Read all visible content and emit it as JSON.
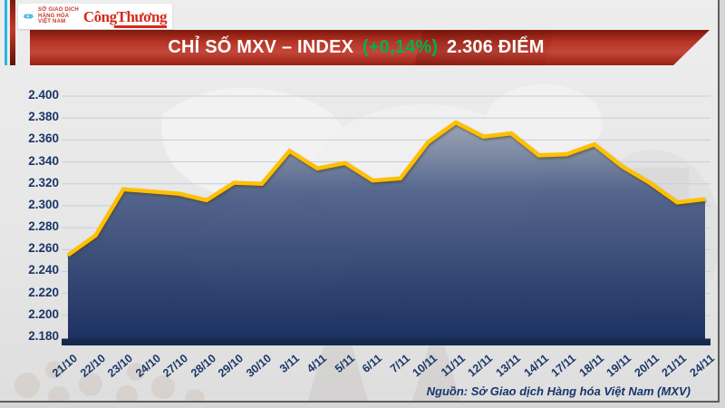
{
  "header": {
    "mxv_logo": {
      "icon": "mxv-chevrons-icon",
      "line1": "SỞ GIAO DỊCH",
      "line2": "HÀNG HÓA",
      "line3": "VIỆT NAM"
    },
    "congthuong_logo": "CôngThương",
    "banner": {
      "title_main": "CHỈ SỐ MXV – INDEX",
      "title_change": "(+0,14%)",
      "title_value": "2.306 ĐIỂM"
    }
  },
  "colors": {
    "banner_red": "#b23122",
    "change_green": "#00b050",
    "line_gold": "#ffc000",
    "axis_navy": "#16294e",
    "label_navy": "#1a3668",
    "stripe_cyan": "#2ab4e4",
    "grid_gray": "#c7cdda"
  },
  "chart_data": {
    "type": "area",
    "title": "CHỈ SỐ MXV – INDEX (+0,14%) 2.306 ĐIỂM",
    "categories": [
      "21/10",
      "22/10",
      "23/10",
      "24/10",
      "27/10",
      "28/10",
      "29/10",
      "30/10",
      "3/11",
      "4/11",
      "5/11",
      "6/11",
      "7/11",
      "10/11",
      "11/11",
      "12/11",
      "13/11",
      "14/11",
      "17/11",
      "18/11",
      "19/11",
      "20/11",
      "21/11",
      "24/11"
    ],
    "values": [
      2255,
      2273,
      2315,
      2313,
      2311,
      2305,
      2321,
      2320,
      2350,
      2334,
      2339,
      2323,
      2325,
      2358,
      2376,
      2363,
      2366,
      2346,
      2347,
      2356,
      2336,
      2321,
      2303,
      2306
    ],
    "ylim": [
      2180,
      2400
    ],
    "y_ticks": [
      2400,
      2380,
      2360,
      2340,
      2320,
      2300,
      2280,
      2260,
      2240,
      2220,
      2200,
      2180
    ],
    "y_tick_labels": [
      "2.400",
      "2.380",
      "2.360",
      "2.340",
      "2.320",
      "2.300",
      "2.280",
      "2.260",
      "2.240",
      "2.220",
      "2.200",
      "2.180"
    ],
    "xlabel": "",
    "ylabel": "",
    "grid": true,
    "legend": "none",
    "line_color": "#ffc000",
    "fill_gradient_top": "#9aa3b4",
    "fill_gradient_mid": "#4f6189",
    "fill_gradient_bottom": "#152a5c"
  },
  "footer": {
    "source": "Nguồn: Sở Giao dịch Hàng hóa Việt Nam (MXV)"
  }
}
